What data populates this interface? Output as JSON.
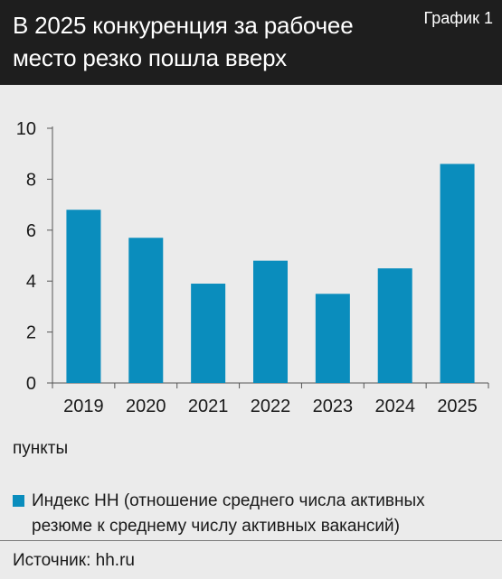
{
  "header": {
    "title": "В 2025 конкуренция за рабочее место резко пошла вверх",
    "chart_number": "График 1"
  },
  "units_label": "пункты",
  "legend": {
    "label": "Индекс HH (отношение среднего числа активных резюме к среднему числу активных вакансий)",
    "color": "#0a8dbd"
  },
  "source": "Источник: hh.ru",
  "colors": {
    "header_bg": "#1e1e1e",
    "page_bg": "#ebebeb",
    "bar": "#0a8dbd"
  },
  "chart_data": {
    "type": "bar",
    "categories": [
      "2019",
      "2020",
      "2021",
      "2022",
      "2023",
      "2024",
      "2025"
    ],
    "series": [
      {
        "name": "Индекс HH (отношение среднего числа активных резюме к среднему числу активных вакансий)",
        "values": [
          6.8,
          5.7,
          3.9,
          4.8,
          3.5,
          4.5,
          8.6
        ]
      }
    ],
    "yticks": [
      0,
      2,
      4,
      6,
      8,
      10
    ],
    "ylim": [
      0,
      10
    ],
    "ylabel": "пункты",
    "grid": false,
    "legend_position": "bottom"
  }
}
